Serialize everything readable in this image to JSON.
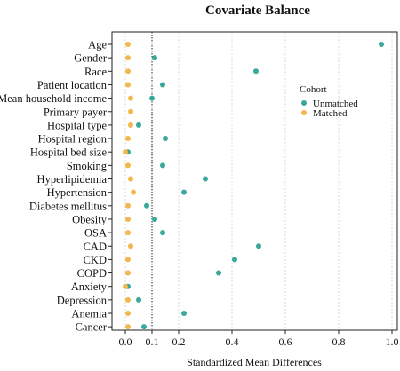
{
  "chart_data": {
    "type": "scatter",
    "title": "Covariate Balance",
    "xlabel": "Standardized Mean Differences",
    "ylabel": "",
    "xlim": [
      -0.05,
      1.02
    ],
    "xticks": [
      0.0,
      0.1,
      0.2,
      0.4,
      0.6,
      0.8,
      1.0
    ],
    "xtick_labels": [
      "0.0",
      "0.1",
      "0.2",
      "0.4",
      "0.6",
      "0.8",
      "1.0"
    ],
    "threshold": 0.1,
    "grid": true,
    "legend": {
      "title": "Cohort",
      "placement": "right"
    },
    "categories": [
      "Age",
      "Gender",
      "Race",
      "Patient location",
      "Mean household income",
      "Primary payer",
      "Hospital type",
      "Hospital region",
      "Hospital bed size",
      "Smoking",
      "Hyperlipidemia",
      "Hypertension",
      "Diabetes mellitus",
      "Obesity",
      "OSA",
      "CAD",
      "CKD",
      "COPD",
      "Anxiety",
      "Depression",
      "Anemia",
      "Cancer"
    ],
    "series": [
      {
        "name": "Unmatched",
        "color": "#3aa89a",
        "values": [
          0.96,
          0.11,
          0.49,
          0.14,
          0.1,
          null,
          0.05,
          0.15,
          0.01,
          0.14,
          0.3,
          0.22,
          0.08,
          0.11,
          0.14,
          0.5,
          0.41,
          0.35,
          0.01,
          0.05,
          0.22,
          0.07
        ]
      },
      {
        "name": "Matched",
        "color": "#f2b84b",
        "values": [
          0.01,
          0.01,
          0.01,
          0.01,
          0.02,
          0.02,
          0.02,
          0.01,
          0.0,
          0.01,
          0.02,
          0.03,
          0.01,
          0.01,
          0.01,
          0.02,
          0.01,
          0.01,
          0.0,
          0.01,
          0.01,
          0.01
        ]
      }
    ]
  }
}
